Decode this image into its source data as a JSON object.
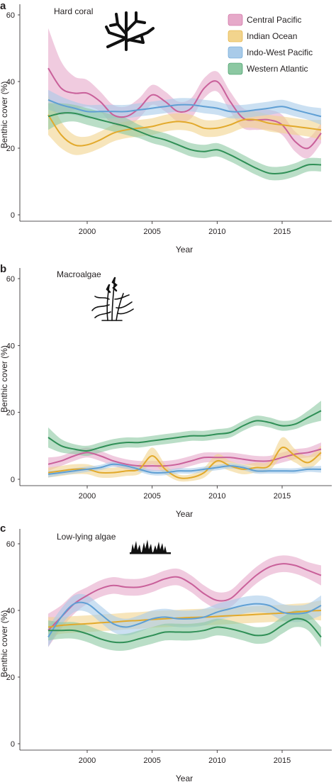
{
  "legend": [
    {
      "name": "Central Pacific",
      "color": "#c9609a",
      "band": "#e6a9c9"
    },
    {
      "name": "Indian Ocean",
      "color": "#e2a92b",
      "band": "#f2d48d"
    },
    {
      "name": "Indo-West Pacific",
      "color": "#5f9fd4",
      "band": "#a9cbe9"
    },
    {
      "name": "Western Atlantic",
      "color": "#2f8f56",
      "band": "#8cc8a2"
    }
  ],
  "chart_data": [
    {
      "type": "line",
      "panel": "a",
      "title": "Hard coral",
      "icon": "coral-icon",
      "xlabel": "Year",
      "ylabel": "Benthic cover (%)",
      "xlim": [
        1997,
        2018.2
      ],
      "ylim": [
        0,
        60
      ],
      "xticks": [
        2000,
        2005,
        2010,
        2015
      ],
      "yticks": [
        0,
        20,
        40,
        60
      ],
      "x": [
        1997,
        1998,
        1999,
        2000,
        2001,
        2002,
        2003,
        2004,
        2005,
        2006,
        2007,
        2008,
        2009,
        2010,
        2011,
        2012,
        2013,
        2014,
        2015,
        2016,
        2017,
        2018
      ],
      "series": [
        {
          "name": "Central Pacific",
          "values": [
            44,
            38,
            36.5,
            36.5,
            34,
            30,
            29.5,
            32,
            36,
            34,
            31,
            32,
            38,
            40,
            34,
            29,
            28.5,
            28.5,
            27,
            22,
            20,
            24.5
          ],
          "band": [
            12,
            8,
            5,
            4,
            3,
            3,
            3,
            3,
            3,
            3,
            3,
            3,
            3,
            3,
            3,
            3,
            3,
            3,
            3,
            3,
            3,
            3
          ]
        },
        {
          "name": "Indian Ocean",
          "values": [
            30,
            24,
            21,
            21,
            22.5,
            24.5,
            25.5,
            26,
            26.5,
            27.5,
            28,
            27.5,
            26,
            26,
            27,
            28.5,
            28.5,
            27.5,
            27,
            26.5,
            26,
            25.5
          ],
          "band": [
            6,
            4,
            3,
            2.5,
            2.5,
            2.5,
            2.5,
            2.5,
            2.5,
            2.5,
            2.5,
            2.5,
            2.5,
            2.5,
            2.5,
            2.5,
            2.5,
            2.5,
            2.5,
            2.5,
            2.5,
            3
          ]
        },
        {
          "name": "Indo-West Pacific",
          "values": [
            34.5,
            33,
            32,
            31,
            31,
            31,
            31,
            31.5,
            32,
            32.5,
            33,
            33,
            32.5,
            32,
            31,
            31,
            31.5,
            32,
            32.5,
            31.5,
            30.5,
            29.5
          ],
          "band": [
            3,
            2.5,
            2,
            2,
            2,
            2,
            2,
            2,
            2,
            2,
            2,
            2,
            2,
            2,
            2,
            2,
            2,
            2,
            2,
            2,
            2,
            2.5
          ]
        },
        {
          "name": "Western Atlantic",
          "values": [
            29.5,
            30.5,
            30.5,
            29.5,
            28.5,
            27.5,
            26.5,
            25,
            23.5,
            22.5,
            21,
            19.5,
            19,
            19.5,
            18,
            16,
            14,
            12.5,
            12.5,
            13.5,
            15,
            15
          ],
          "band": [
            4,
            3,
            2.5,
            2.5,
            2.5,
            2.5,
            2.5,
            2,
            2,
            2,
            2,
            2,
            2,
            2,
            2,
            2,
            2,
            2,
            2,
            2,
            2,
            2
          ]
        }
      ]
    },
    {
      "type": "line",
      "panel": "b",
      "title": "Macroalgae",
      "icon": "macroalgae-icon",
      "xlabel": "Year",
      "ylabel": "Benthic cover (%)",
      "xlim": [
        1997,
        2018.2
      ],
      "ylim": [
        0,
        60
      ],
      "xticks": [
        2000,
        2005,
        2010,
        2015
      ],
      "yticks": [
        0,
        20,
        40,
        60
      ],
      "x": [
        1997,
        1998,
        1999,
        2000,
        2001,
        2002,
        2003,
        2004,
        2005,
        2006,
        2007,
        2008,
        2009,
        2010,
        2011,
        2012,
        2013,
        2014,
        2015,
        2016,
        2017,
        2018
      ],
      "series": [
        {
          "name": "Central Pacific",
          "values": [
            4.5,
            5.5,
            7,
            8,
            7,
            5.5,
            4.5,
            4,
            4,
            4,
            4.5,
            5.5,
            6.5,
            6.5,
            6.5,
            6,
            5.5,
            5.5,
            6.5,
            7.5,
            8,
            9
          ],
          "band": [
            2,
            1.5,
            1.5,
            1.5,
            1.5,
            1.5,
            1.5,
            1.5,
            1.5,
            1.5,
            1.5,
            1.5,
            1.5,
            1.5,
            1.5,
            1.5,
            1.5,
            1.5,
            1.5,
            1.5,
            1.5,
            2
          ]
        },
        {
          "name": "Indian Ocean",
          "values": [
            2,
            2.5,
            3,
            3,
            2,
            2,
            2.5,
            3,
            7,
            3,
            0.5,
            0.5,
            2,
            5.5,
            4,
            3,
            3.5,
            4,
            9.5,
            7,
            5,
            8
          ],
          "band": [
            1.5,
            1.5,
            1.5,
            1.5,
            1.5,
            1.5,
            1.5,
            1.5,
            2.5,
            1.5,
            1,
            1,
            1.5,
            2,
            1.5,
            1.5,
            1.5,
            1.5,
            3,
            2,
            2,
            2
          ]
        },
        {
          "name": "Indo-West Pacific",
          "values": [
            1.5,
            2,
            2.5,
            3,
            3.5,
            4.5,
            4,
            3,
            2,
            2,
            2.5,
            2.5,
            3,
            3.5,
            4,
            3.5,
            2.5,
            2.5,
            2.5,
            2.5,
            3,
            3
          ],
          "band": [
            1,
            0.8,
            0.8,
            0.8,
            0.8,
            0.8,
            0.8,
            0.8,
            0.8,
            0.8,
            0.8,
            0.8,
            0.8,
            0.8,
            0.8,
            0.8,
            0.8,
            0.8,
            0.8,
            0.8,
            0.8,
            1
          ]
        },
        {
          "name": "Western Atlantic",
          "values": [
            12.5,
            10,
            9,
            8.5,
            9.5,
            10.5,
            11,
            11,
            11.5,
            12,
            12.5,
            13,
            13,
            13.5,
            14,
            16,
            17.5,
            17,
            16,
            16.5,
            18.5,
            20.5
          ],
          "band": [
            3,
            2,
            1.5,
            1.5,
            1.5,
            1.5,
            1.5,
            1.5,
            1.5,
            1.5,
            1.5,
            1.5,
            1.5,
            1.5,
            1.5,
            1.5,
            1.5,
            1.5,
            1.5,
            1.5,
            2,
            3
          ]
        }
      ]
    },
    {
      "type": "line",
      "panel": "c",
      "title": "Low-lying algae",
      "icon": "low-lying-algae-icon",
      "xlabel": "Year",
      "ylabel": "Benthic cover (%)",
      "xlim": [
        1997,
        2018.2
      ],
      "ylim": [
        0,
        60
      ],
      "xticks": [
        2000,
        2005,
        2010,
        2015
      ],
      "yticks": [
        0,
        20,
        40,
        60
      ],
      "x": [
        1997,
        1998,
        1999,
        2000,
        2001,
        2002,
        2003,
        2004,
        2005,
        2006,
        2007,
        2008,
        2009,
        2010,
        2011,
        2012,
        2013,
        2014,
        2015,
        2016,
        2017,
        2018
      ],
      "series": [
        {
          "name": "Central Pacific",
          "values": [
            34,
            38,
            42,
            44.5,
            46.5,
            47.5,
            47,
            47,
            48,
            49.5,
            50,
            48,
            45,
            43,
            43.5,
            47,
            50.5,
            53,
            54,
            53.5,
            52,
            50.5
          ],
          "band": [
            5,
            3.5,
            3,
            2.5,
            2.5,
            2.5,
            2.5,
            2.5,
            2.5,
            2.5,
            2.5,
            2.5,
            2.5,
            2.5,
            2.5,
            2.5,
            2.5,
            2.5,
            2.5,
            2.5,
            2.5,
            3
          ]
        },
        {
          "name": "Indian Ocean",
          "values": [
            35,
            35.5,
            35.8,
            36,
            36.3,
            36.5,
            36.8,
            37,
            37.3,
            37.5,
            37.7,
            37.9,
            38,
            38.2,
            38.4,
            38.6,
            38.8,
            39,
            39.2,
            39.5,
            39.8,
            40
          ],
          "band": [
            3,
            2.5,
            2.5,
            2.5,
            2.5,
            2.5,
            2.5,
            2.5,
            2.5,
            2.5,
            2.5,
            2.5,
            2.5,
            2.5,
            2.5,
            2.5,
            2.5,
            2.5,
            2.5,
            2.5,
            2.5,
            3
          ]
        },
        {
          "name": "Indo-West Pacific",
          "values": [
            32,
            38,
            42,
            42,
            39,
            36,
            35,
            36,
            37.5,
            38,
            37.5,
            37.5,
            38,
            39.5,
            40.5,
            41.5,
            42,
            41.5,
            39.5,
            39,
            39.5,
            41.5
          ],
          "band": [
            3,
            2.5,
            2.5,
            2.5,
            2.5,
            2.5,
            2.5,
            2.5,
            2.5,
            2.5,
            2.5,
            2.5,
            2.5,
            2.5,
            2.5,
            2.5,
            2.5,
            2.5,
            2.5,
            2.5,
            2.5,
            3
          ]
        },
        {
          "name": "Western Atlantic",
          "values": [
            34,
            34,
            34,
            33,
            31.5,
            30.5,
            30.5,
            31.5,
            32.5,
            33.5,
            33.5,
            33.5,
            34,
            35,
            34.5,
            33.5,
            32.5,
            33,
            35.5,
            37.5,
            36.5,
            32
          ],
          "band": [
            3,
            2.5,
            2.5,
            2.5,
            2.5,
            2.5,
            2.5,
            2.5,
            2.5,
            2.5,
            2.5,
            2.5,
            2.5,
            2.5,
            2.5,
            2.5,
            2.5,
            2.5,
            2.5,
            2.5,
            2.5,
            3
          ]
        }
      ]
    }
  ]
}
